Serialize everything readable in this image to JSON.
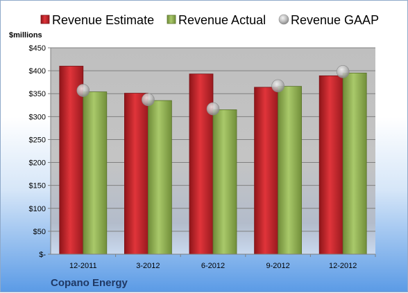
{
  "chart_data": {
    "type": "bar",
    "company": "Copano Energy",
    "ylabel": "$millions",
    "categories": [
      "12-2011",
      "3-2012",
      "6-2012",
      "9-2012",
      "12-2012"
    ],
    "ylim": [
      0,
      450
    ],
    "yticks": [
      0,
      50,
      100,
      150,
      200,
      250,
      300,
      350,
      400,
      450
    ],
    "ytick_labels": [
      "$-",
      "$50",
      "$100",
      "$150",
      "$200",
      "$250",
      "$300",
      "$350",
      "$400",
      "$450"
    ],
    "legend_position": "top",
    "grid": true,
    "series": [
      {
        "name": "Revenue Estimate",
        "kind": "bar",
        "color": "#c0272d",
        "values": [
          410,
          351,
          393,
          364,
          389
        ]
      },
      {
        "name": "Revenue Actual",
        "kind": "bar",
        "color": "#8fae4e",
        "values": [
          354,
          335,
          315,
          366,
          395
        ]
      },
      {
        "name": "Revenue GAAP",
        "kind": "marker",
        "color": "#b0b0b0",
        "values": [
          357,
          337,
          317,
          367,
          398
        ]
      }
    ]
  }
}
